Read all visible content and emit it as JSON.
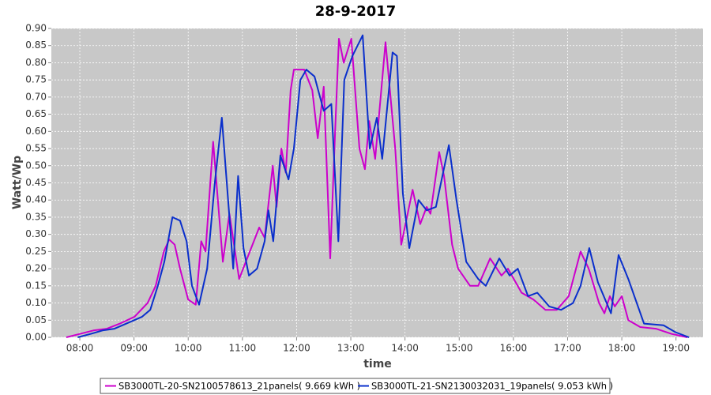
{
  "chart_data": {
    "type": "line",
    "title": "28-9-2017",
    "x_label": "time",
    "y_label": "Watt/Wp",
    "xlim": [
      7.475,
      19.5
    ],
    "ylim": [
      0,
      0.9
    ],
    "grid": true,
    "legend": "bottom",
    "xticks": [
      {
        "value": 8,
        "label": "08:00"
      },
      {
        "value": 9,
        "label": "09:00"
      },
      {
        "value": 10,
        "label": "10:00"
      },
      {
        "value": 11,
        "label": "11:00"
      },
      {
        "value": 12,
        "label": "12:00"
      },
      {
        "value": 13,
        "label": "13:00"
      },
      {
        "value": 14,
        "label": "14:00"
      },
      {
        "value": 15,
        "label": "15:00"
      },
      {
        "value": 16,
        "label": "16:00"
      },
      {
        "value": 17,
        "label": "17:00"
      },
      {
        "value": 18,
        "label": "18:00"
      },
      {
        "value": 19,
        "label": "19:00"
      }
    ],
    "yticks": [
      {
        "value": 0,
        "label": "0.00"
      },
      {
        "value": 0.05,
        "label": "0.05"
      },
      {
        "value": 0.1,
        "label": "0.10"
      },
      {
        "value": 0.15,
        "label": "0.15"
      },
      {
        "value": 0.2,
        "label": "0.20"
      },
      {
        "value": 0.25,
        "label": "0.25"
      },
      {
        "value": 0.3,
        "label": "0.30"
      },
      {
        "value": 0.35,
        "label": "0.35"
      },
      {
        "value": 0.4,
        "label": "0.40"
      },
      {
        "value": 0.45,
        "label": "0.45"
      },
      {
        "value": 0.5,
        "label": "0.50"
      },
      {
        "value": 0.55,
        "label": "0.55"
      },
      {
        "value": 0.6,
        "label": "0.60"
      },
      {
        "value": 0.65,
        "label": "0.65"
      },
      {
        "value": 0.7,
        "label": "0.70"
      },
      {
        "value": 0.75,
        "label": "0.75"
      },
      {
        "value": 0.8,
        "label": "0.80"
      },
      {
        "value": 0.85,
        "label": "0.85"
      },
      {
        "value": 0.9,
        "label": "0.90"
      }
    ],
    "series": [
      {
        "name": "SB3000TL-20-SN2100578613_21panels( 9.669 kWh )",
        "color": "#cc00cc",
        "x": [
          7.75,
          8.0,
          8.25,
          8.5,
          8.74,
          9.01,
          9.25,
          9.4,
          9.55,
          9.65,
          9.75,
          9.85,
          10.0,
          10.14,
          10.24,
          10.32,
          10.46,
          10.64,
          10.76,
          10.94,
          11.31,
          11.41,
          11.56,
          11.63,
          11.72,
          11.8,
          11.89,
          11.95,
          12.14,
          12.29,
          12.39,
          12.5,
          12.62,
          12.71,
          12.78,
          12.87,
          13.01,
          13.16,
          13.26,
          13.34,
          13.45,
          13.64,
          13.82,
          13.93,
          14.14,
          14.28,
          14.4,
          14.47,
          14.63,
          14.72,
          14.87,
          14.98,
          15.2,
          15.35,
          15.57,
          15.78,
          15.9,
          16.15,
          16.37,
          16.59,
          16.8,
          17.02,
          17.24,
          17.39,
          17.58,
          17.68,
          17.78,
          17.87,
          18.0,
          18.12,
          18.34,
          18.63,
          18.92,
          19.21
        ],
        "values": [
          0,
          0.01,
          0.02,
          0.025,
          0.04,
          0.06,
          0.1,
          0.15,
          0.25,
          0.285,
          0.27,
          0.2,
          0.11,
          0.095,
          0.28,
          0.25,
          0.57,
          0.22,
          0.36,
          0.17,
          0.32,
          0.29,
          0.5,
          0.38,
          0.55,
          0.48,
          0.72,
          0.78,
          0.78,
          0.72,
          0.58,
          0.73,
          0.23,
          0.6,
          0.87,
          0.8,
          0.87,
          0.55,
          0.49,
          0.63,
          0.52,
          0.86,
          0.55,
          0.27,
          0.43,
          0.33,
          0.38,
          0.36,
          0.54,
          0.47,
          0.27,
          0.2,
          0.15,
          0.15,
          0.23,
          0.18,
          0.2,
          0.13,
          0.11,
          0.08,
          0.08,
          0.12,
          0.25,
          0.2,
          0.1,
          0.07,
          0.12,
          0.09,
          0.12,
          0.05,
          0.03,
          0.025,
          0.01,
          0
        ]
      },
      {
        "name": "SB3000TL-21-SN2130032031_19panels( 9.053 kWh )",
        "color": "#0a2fcc",
        "x": [
          7.96,
          8.2,
          8.42,
          8.64,
          8.86,
          9.15,
          9.3,
          9.44,
          9.56,
          9.71,
          9.85,
          9.97,
          10.07,
          10.2,
          10.35,
          10.49,
          10.62,
          10.76,
          10.83,
          10.92,
          11.02,
          11.12,
          11.27,
          11.41,
          11.48,
          11.57,
          11.7,
          11.85,
          11.95,
          12.07,
          12.18,
          12.33,
          12.5,
          12.64,
          12.77,
          12.88,
          13.03,
          13.22,
          13.35,
          13.48,
          13.58,
          13.77,
          13.85,
          13.96,
          14.08,
          14.25,
          14.4,
          14.57,
          14.81,
          14.95,
          15.13,
          15.35,
          15.49,
          15.74,
          15.93,
          16.08,
          16.27,
          16.44,
          16.66,
          16.88,
          17.1,
          17.24,
          17.4,
          17.56,
          17.8,
          17.94,
          18.12,
          18.41,
          18.77,
          18.99,
          19.24
        ],
        "values": [
          0,
          0.01,
          0.02,
          0.025,
          0.04,
          0.06,
          0.08,
          0.15,
          0.22,
          0.35,
          0.34,
          0.28,
          0.15,
          0.095,
          0.2,
          0.45,
          0.64,
          0.35,
          0.2,
          0.47,
          0.26,
          0.18,
          0.2,
          0.28,
          0.37,
          0.28,
          0.53,
          0.46,
          0.55,
          0.75,
          0.78,
          0.76,
          0.66,
          0.68,
          0.28,
          0.75,
          0.82,
          0.88,
          0.55,
          0.64,
          0.52,
          0.83,
          0.82,
          0.42,
          0.26,
          0.4,
          0.37,
          0.38,
          0.56,
          0.4,
          0.22,
          0.17,
          0.15,
          0.23,
          0.18,
          0.2,
          0.12,
          0.13,
          0.09,
          0.08,
          0.1,
          0.15,
          0.26,
          0.16,
          0.07,
          0.24,
          0.17,
          0.04,
          0.035,
          0.015,
          0
        ]
      }
    ]
  }
}
